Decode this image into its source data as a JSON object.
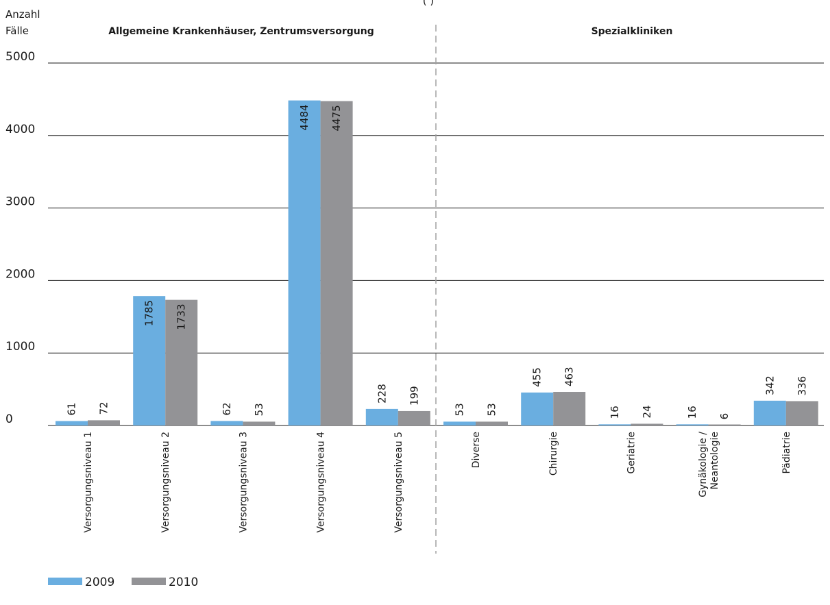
{
  "chart_data": {
    "type": "bar",
    "title": "",
    "header_partial": "(                        )",
    "ylabel": [
      "Anzahl",
      "Fälle"
    ],
    "ylim": [
      0,
      5000
    ],
    "yticks": [
      "0",
      "1000",
      "2000",
      "3000",
      "4000",
      "5000"
    ],
    "ytick_values": [
      0,
      1000,
      2000,
      3000,
      4000,
      5000
    ],
    "grid": true,
    "legend_position": "bottom-left",
    "groups": [
      {
        "name": "Allgemeine Krankenhäuser, Zentrumsversorgung"
      },
      {
        "name": "Spezialkliniken"
      }
    ],
    "categories": [
      [
        "Versorgungsniveau 1"
      ],
      [
        "Versorgungsniveau 2"
      ],
      [
        "Versorgungsniveau 3"
      ],
      [
        "Versorgungsniveau 4"
      ],
      [
        "Versorgungsniveau 5"
      ],
      [
        "Diverse"
      ],
      [
        "Chirurgie"
      ],
      [
        "Geriatrie"
      ],
      [
        "Gynäkologie /",
        "Neantologie"
      ],
      [
        "Pädiatrie"
      ]
    ],
    "series": [
      {
        "name": "2009",
        "color": "#6aaee0",
        "values": [
          61,
          1785,
          62,
          4484,
          228,
          53,
          455,
          16,
          16,
          342
        ],
        "labels": [
          "61",
          "1785",
          "62",
          "4484",
          "228",
          "53",
          "455",
          "16",
          "16",
          "342"
        ]
      },
      {
        "name": "2010",
        "color": "#939396",
        "values": [
          72,
          1733,
          53,
          4475,
          199,
          53,
          463,
          24,
          6,
          336
        ],
        "labels": [
          "72",
          "1733",
          "53",
          "4475",
          "199",
          "53",
          "463",
          "24",
          "6",
          "336"
        ]
      }
    ]
  }
}
